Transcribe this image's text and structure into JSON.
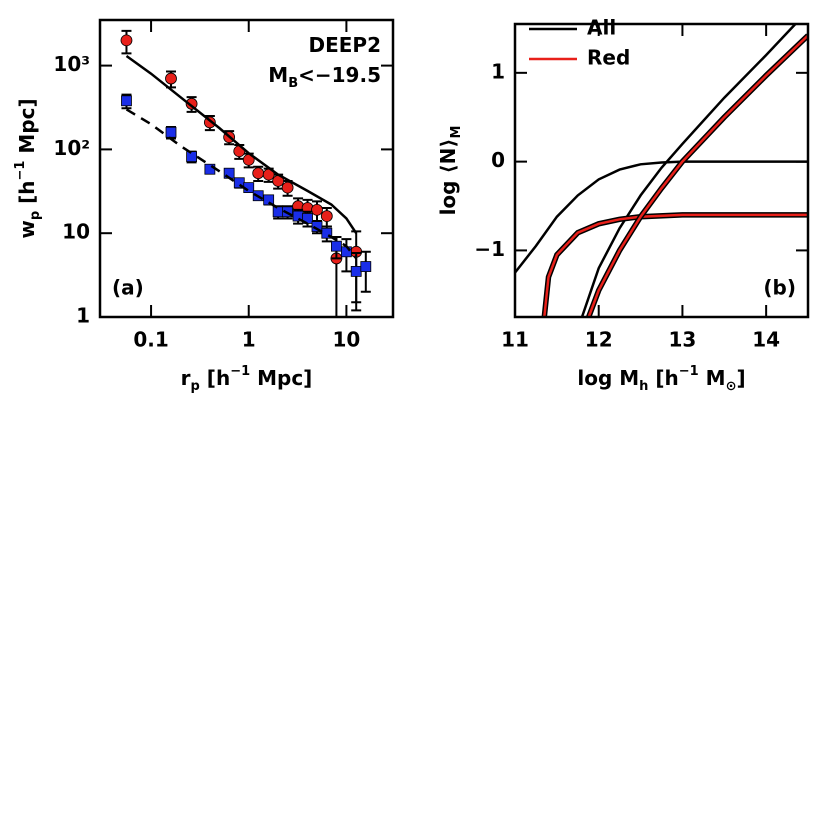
{
  "chart_data": [
    {
      "type": "scatter",
      "xlog": true,
      "ylog": true,
      "xlim": [
        0.03,
        30
      ],
      "ylim": [
        1,
        3500
      ],
      "xticks": [
        0.1,
        1,
        10
      ],
      "yticks": [
        1,
        10,
        {
          "value": 100,
          "label": "10²"
        },
        {
          "value": 1000,
          "label": "10³"
        }
      ],
      "xlabel": [
        {
          "text": "r"
        },
        {
          "text": "p",
          "shift": "sub"
        },
        {
          "text": " [h"
        },
        {
          "text": "−1",
          "shift": "super"
        },
        {
          "text": " Mpc]"
        }
      ],
      "ylabel": [
        {
          "text": "w"
        },
        {
          "text": "p",
          "shift": "sub"
        },
        {
          "text": " [h"
        },
        {
          "text": "−1",
          "shift": "super"
        },
        {
          "text": " Mpc]"
        }
      ],
      "annotations": [
        [
          {
            "text": "DEEP2"
          }
        ],
        [
          {
            "text": "M"
          },
          {
            "text": "B",
            "shift": "sub"
          },
          {
            "text": "<−19.5"
          }
        ]
      ],
      "panel_label": "(a)",
      "series": [
        {
          "color": "#e8201a",
          "marker": "circle",
          "x": [
            0.056,
            0.16,
            0.26,
            0.4,
            0.63,
            0.8,
            1.0,
            1.25,
            1.6,
            2.0,
            2.5,
            3.2,
            4.0,
            5.0,
            6.3,
            7.9,
            12.6
          ],
          "values": [
            2000,
            700,
            350,
            210,
            140,
            95,
            75,
            52,
            50,
            42,
            35,
            21,
            20,
            19,
            16,
            5,
            6
          ],
          "errors": [
            600,
            150,
            70,
            40,
            25,
            18,
            14,
            10,
            9,
            8,
            7,
            5,
            5,
            5,
            4,
            4,
            4.5
          ]
        },
        {
          "color": "#1a2ee8",
          "marker": "square",
          "x": [
            0.056,
            0.16,
            0.26,
            0.4,
            0.63,
            0.8,
            1.0,
            1.25,
            1.6,
            2.0,
            2.5,
            3.2,
            4.0,
            5.0,
            6.3,
            7.9,
            10,
            12.6,
            15.8
          ],
          "values": [
            380,
            160,
            82,
            58,
            52,
            40,
            35,
            28,
            25,
            18,
            18,
            16,
            15,
            12,
            10,
            7,
            6,
            3.5,
            4
          ],
          "errors": [
            70,
            25,
            12,
            6,
            6,
            5,
            4,
            3,
            3,
            3,
            3,
            3,
            3,
            2,
            2,
            2,
            2.5,
            2.3,
            2
          ]
        },
        {
          "color": "#000000",
          "line": "solid",
          "x": [
            0.056,
            0.1,
            0.2,
            0.5,
            1,
            2,
            4,
            7,
            10,
            12.6
          ],
          "values": [
            1300,
            800,
            420,
            180,
            90,
            50,
            32,
            22,
            15,
            10
          ]
        },
        {
          "color": "#000000",
          "line": "dashed",
          "x": [
            0.056,
            0.1,
            0.2,
            0.5,
            1,
            2,
            4,
            7,
            10,
            12.6
          ],
          "values": [
            300,
            200,
            110,
            55,
            32,
            20,
            13,
            9,
            7,
            5
          ]
        }
      ]
    },
    {
      "type": "line",
      "xlim": [
        11,
        14.5
      ],
      "ylim": [
        -1.75,
        1.55
      ],
      "xticks": [
        11,
        12,
        13,
        14
      ],
      "yticks": [
        {
          "value": -1,
          "label": "−1"
        },
        0,
        1
      ],
      "xlabel": [
        {
          "text": "log M"
        },
        {
          "text": "h",
          "shift": "sub"
        },
        {
          "text": " [h"
        },
        {
          "text": "−1",
          "shift": "super"
        },
        {
          "text": " M"
        },
        {
          "text": "⊙",
          "shift": "sub"
        },
        {
          "text": "]"
        }
      ],
      "ylabel": [
        {
          "text": "log ⟨N⟩"
        },
        {
          "text": "M",
          "shift": "sub"
        }
      ],
      "panel_label": "(b)",
      "legend": "upper left",
      "series": [
        {
          "name": "All",
          "color": "#000000",
          "components": [
            {
              "x": [
                11,
                11.25,
                11.5,
                11.75,
                12,
                12.25,
                12.5,
                12.75,
                13,
                13.5,
                14,
                14.5
              ],
              "values": [
                -1.25,
                -0.95,
                -0.62,
                -0.38,
                -0.2,
                -0.09,
                -0.03,
                -0.01,
                0,
                0,
                0,
                0
              ]
            },
            {
              "x": [
                11.8,
                12,
                12.25,
                12.5,
                12.75,
                13,
                13.5,
                14,
                14.35
              ],
              "values": [
                -1.75,
                -1.2,
                -0.75,
                -0.38,
                -0.07,
                0.2,
                0.72,
                1.2,
                1.55
              ]
            }
          ]
        },
        {
          "name": "Red",
          "color": "#e8201a",
          "outline": "#000000",
          "components": [
            {
              "x": [
                11.35,
                11.4,
                11.5,
                11.75,
                12,
                12.25,
                12.5,
                13,
                14.5
              ],
              "values": [
                -1.75,
                -1.3,
                -1.05,
                -0.8,
                -0.7,
                -0.65,
                -0.62,
                -0.6,
                -0.6
              ]
            },
            {
              "x": [
                11.88,
                12,
                12.25,
                12.5,
                12.75,
                13,
                13.5,
                14,
                14.5
              ],
              "values": [
                -1.75,
                -1.45,
                -1.0,
                -0.62,
                -0.3,
                0,
                0.5,
                0.97,
                1.42
              ]
            }
          ]
        }
      ]
    }
  ]
}
